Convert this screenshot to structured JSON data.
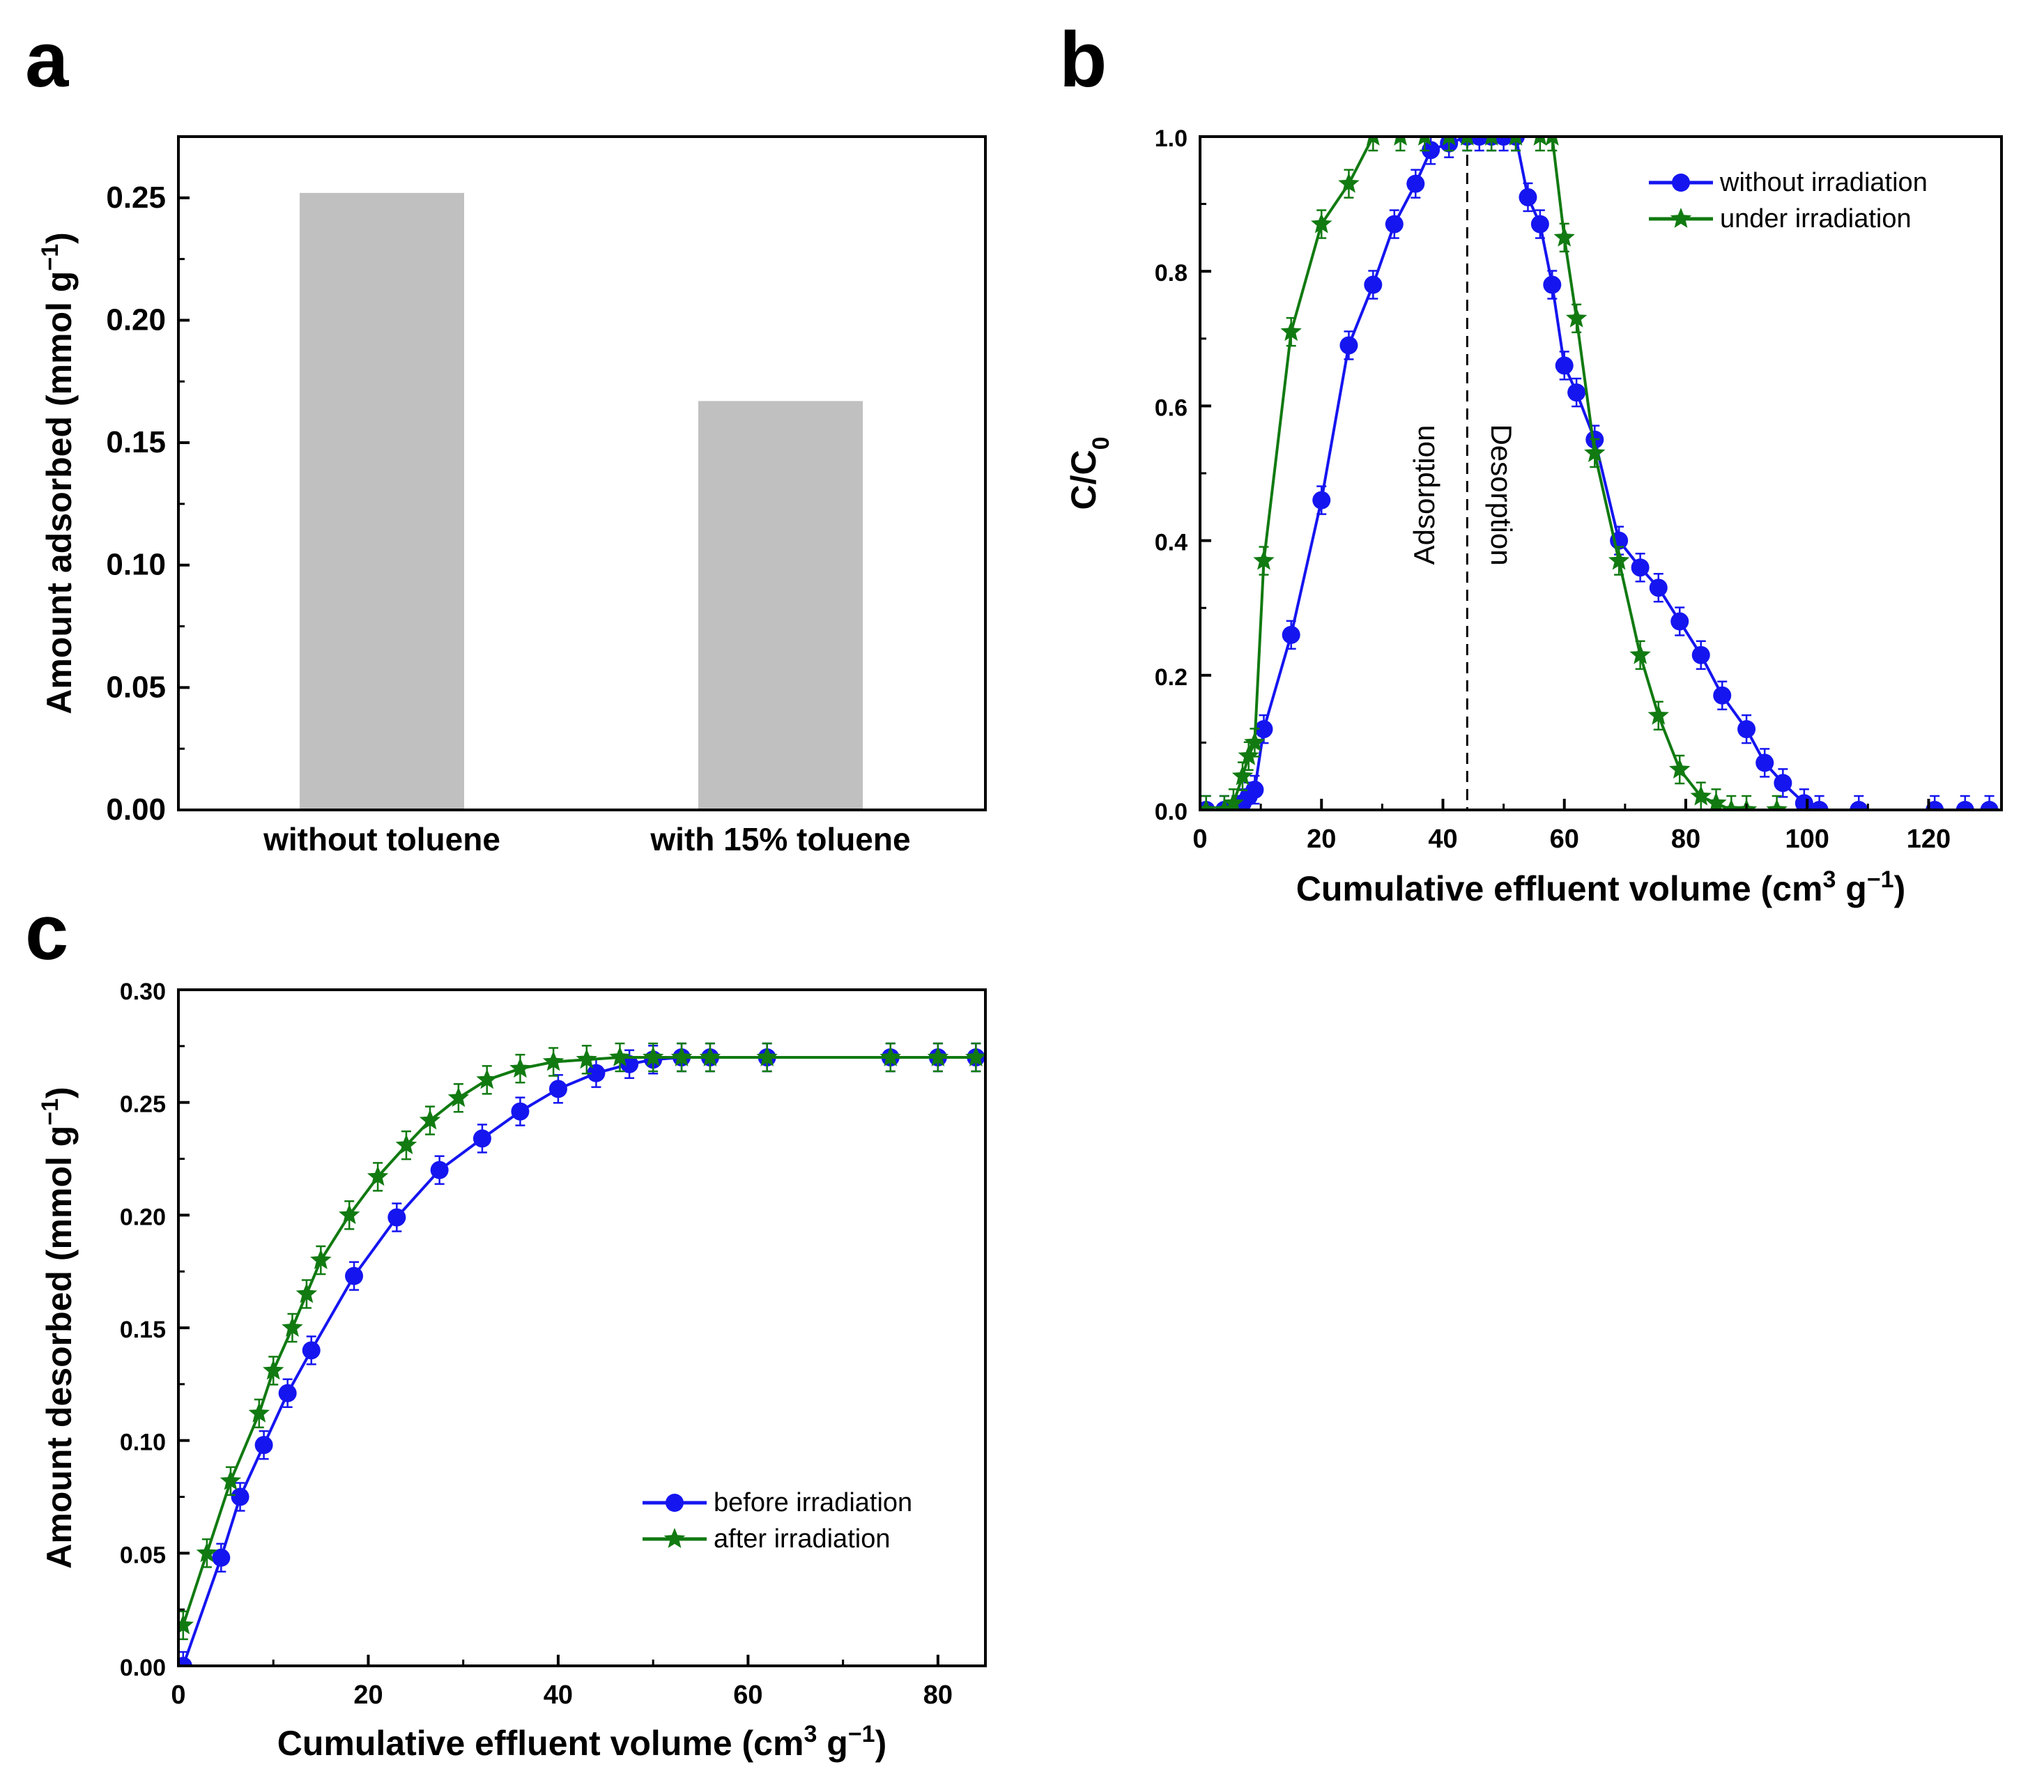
{
  "panel_labels": {
    "a": "a",
    "b": "b",
    "c": "c"
  },
  "colors": {
    "blue": "#1515F0",
    "green": "#117A11",
    "bar": "#C0C0C0",
    "axis": "#000000"
  },
  "chart_data": [
    {
      "panel": "a",
      "type": "bar",
      "categories": [
        "without toluene",
        "with 15% toluene"
      ],
      "values": [
        0.252,
        0.167
      ],
      "title": "",
      "xlabel": "",
      "ylabel": "Amount adsorbed (mmol g",
      "ylabel_sup": "−1",
      "ylabel_close": ")",
      "ylim": [
        0,
        0.275
      ],
      "yticks": [
        0,
        0.05,
        0.1,
        0.15,
        0.2,
        0.25
      ],
      "ytick_labels": [
        "0.00",
        "0.05",
        "0.10",
        "0.15",
        "0.20",
        "0.25"
      ]
    },
    {
      "panel": "b",
      "type": "line",
      "title": "",
      "xlabel": "Cumulative effluent volume (cm",
      "xlabel_sup1": "3",
      "xlabel_mid": " g",
      "xlabel_sup2": "−1",
      "xlabel_close": ")",
      "ylabel": "C/C",
      "ylabel_sub": "0",
      "xlim": [
        0,
        132
      ],
      "ylim": [
        0,
        1.0
      ],
      "xticks": [
        0,
        20,
        40,
        60,
        80,
        100,
        120
      ],
      "xtick_labels": [
        "0",
        "20",
        "40",
        "60",
        "80",
        "100",
        "120"
      ],
      "yticks": [
        0,
        0.2,
        0.4,
        0.6,
        0.8,
        1.0
      ],
      "ytick_labels": [
        "0.0",
        "0.2",
        "0.4",
        "0.6",
        "0.8",
        "1.0"
      ],
      "divider_x": 44,
      "annotations": [
        "Adsorption",
        "Desorption"
      ],
      "legend_position": "top-right",
      "series": [
        {
          "name": "without irradiation",
          "marker": "circle",
          "color": "blue",
          "x": [
            1,
            4,
            6,
            7,
            8,
            9,
            10.5,
            15,
            20,
            24.5,
            28.5,
            32,
            35.5,
            38,
            41,
            44,
            46,
            48,
            50,
            52,
            54,
            56,
            58,
            60,
            62,
            65,
            69,
            72.5,
            75.5,
            79,
            82.5,
            86,
            90,
            93,
            96,
            99.5,
            102,
            108.5,
            121,
            126,
            130
          ],
          "y": [
            0.0,
            0.0,
            0.0,
            0.01,
            0.02,
            0.03,
            0.12,
            0.26,
            0.46,
            0.69,
            0.78,
            0.87,
            0.93,
            0.98,
            0.99,
            1.0,
            1.0,
            1.0,
            1.0,
            1.0,
            0.91,
            0.87,
            0.78,
            0.66,
            0.62,
            0.55,
            0.4,
            0.36,
            0.33,
            0.28,
            0.23,
            0.17,
            0.12,
            0.07,
            0.04,
            0.01,
            0.0,
            0.0,
            0.0,
            0.0,
            0.0
          ]
        },
        {
          "name": "under irradiation",
          "marker": "star",
          "color": "green",
          "x": [
            1,
            4,
            5.5,
            7,
            8,
            9,
            10.5,
            15,
            20,
            24.5,
            28.5,
            33,
            37,
            41,
            44,
            48,
            52,
            56,
            58,
            60,
            62,
            65,
            69,
            72.5,
            75.5,
            79,
            82.5,
            85,
            87.5,
            90,
            95
          ],
          "y": [
            0.0,
            0.0,
            0.01,
            0.05,
            0.08,
            0.1,
            0.37,
            0.71,
            0.87,
            0.93,
            1.0,
            1.0,
            1.0,
            1.0,
            1.0,
            1.0,
            1.0,
            1.0,
            1.0,
            0.85,
            0.73,
            0.53,
            0.37,
            0.23,
            0.14,
            0.06,
            0.02,
            0.01,
            0.0,
            0.0,
            0.0
          ]
        }
      ]
    },
    {
      "panel": "c",
      "type": "line",
      "title": "",
      "xlabel": "Cumulative effluent volume (cm",
      "xlabel_sup1": "3",
      "xlabel_mid": " g",
      "xlabel_sup2": "−1",
      "xlabel_close": ")",
      "ylabel": "Amount desorbed (mmol g",
      "ylabel_sup": "−1",
      "ylabel_close": ")",
      "xlim": [
        0,
        85
      ],
      "ylim": [
        0,
        0.3
      ],
      "xticks": [
        0,
        20,
        40,
        60,
        80
      ],
      "xtick_labels": [
        "0",
        "20",
        "40",
        "60",
        "80"
      ],
      "yticks": [
        0,
        0.05,
        0.1,
        0.15,
        0.2,
        0.25,
        0.3
      ],
      "ytick_labels": [
        "0.00",
        "0.05",
        "0.10",
        "0.15",
        "0.20",
        "0.25",
        "0.30"
      ],
      "legend_position": "bottom-right",
      "series": [
        {
          "name": "before irradiation",
          "marker": "circle",
          "color": "blue",
          "x": [
            0.5,
            4.5,
            6.5,
            9,
            11.5,
            14,
            18.5,
            23,
            27.5,
            32,
            36,
            40,
            44,
            47.5,
            50,
            53,
            56,
            62,
            75,
            80,
            84
          ],
          "y": [
            0.0,
            0.048,
            0.075,
            0.098,
            0.121,
            0.14,
            0.173,
            0.199,
            0.22,
            0.234,
            0.246,
            0.256,
            0.263,
            0.267,
            0.269,
            0.27,
            0.27,
            0.27,
            0.27,
            0.27,
            0.27
          ]
        },
        {
          "name": "after irradiation",
          "marker": "star",
          "color": "green",
          "x": [
            0.5,
            3,
            5.5,
            8.5,
            10,
            12,
            13.5,
            15,
            18,
            21,
            24,
            26.5,
            29.5,
            32.5,
            36,
            39.5,
            43,
            46.5,
            50,
            53,
            56,
            62,
            75,
            80,
            84
          ],
          "y": [
            0.018,
            0.05,
            0.082,
            0.112,
            0.131,
            0.15,
            0.165,
            0.18,
            0.2,
            0.217,
            0.231,
            0.242,
            0.252,
            0.26,
            0.265,
            0.268,
            0.269,
            0.27,
            0.27,
            0.27,
            0.27,
            0.27,
            0.27,
            0.27,
            0.27
          ]
        }
      ]
    }
  ]
}
